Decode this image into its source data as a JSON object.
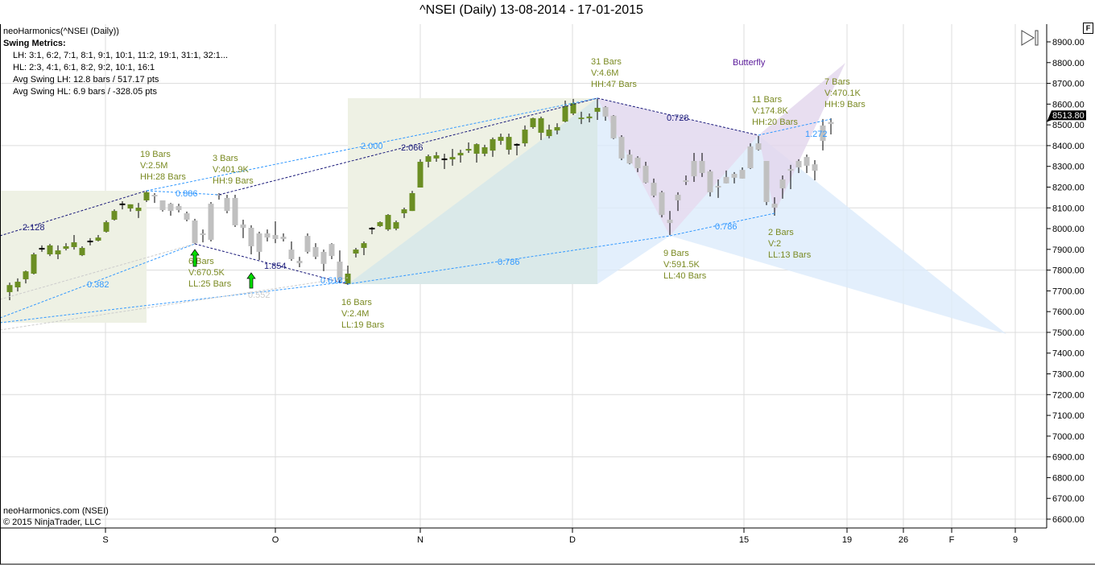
{
  "title": "^NSEI (Daily)  13-08-2014 - 17-01-2015",
  "indicator": {
    "name": "neoHarmonics(^NSEI (Daily))",
    "metrics_title": "Swing Metrics:",
    "lh": "LH: 3:1, 6:2, 7:1, 8:1, 9:1, 10:1, 11:2, 19:1, 31:1, 32:1...",
    "hl": "HL: 2:3, 4:1, 6:1, 8:2, 9:2, 10:1, 16:1",
    "avg_lh": "Avg Swing LH: 12.8 bars / 517.17 pts",
    "avg_hl": "Avg Swing HL: 6.9 bars / -328.05 pts"
  },
  "footer": {
    "source": "neoHarmonics.com (NSEI)",
    "copyright": "© 2015 NinjaTrader, LLC"
  },
  "flag_label": "F",
  "pattern_label": "Butterfly",
  "last_price": "8513.80",
  "colors": {
    "up": "#6b8e23",
    "neutral": "#c0c0c0",
    "zone": "#eef1e4",
    "blue_zone": "#dcebfb",
    "purple_zone": "#e6dcef",
    "dark_line": "#1a1a7a",
    "light_line": "#3399ff",
    "arrow": "#00dd00"
  },
  "swing_labels": [
    {
      "l1": "19 Bars",
      "l2": "V:2.5M",
      "l3": "HH:28 Bars"
    },
    {
      "l1": "3 Bars",
      "l2": "V:401.9K",
      "l3": "HH:9 Bars"
    },
    {
      "l1": "6 Bars",
      "l2": "V:670.5K",
      "l3": "LL:25 Bars"
    },
    {
      "l1": "16 Bars",
      "l2": "V:2.4M",
      "l3": "LL:19 Bars"
    },
    {
      "l1": "31 Bars",
      "l2": "V:4.6M",
      "l3": "HH:47 Bars"
    },
    {
      "l1": "9 Bars",
      "l2": "V:591.5K",
      "l3": "LL:40 Bars"
    },
    {
      "l1": "11 Bars",
      "l2": "V:174.8K",
      "l3": "HH:20 Bars"
    },
    {
      "l1": "2 Bars",
      "l2": "V:2",
      "l3": "LL:13 Bars"
    },
    {
      "l1": "7 Bars",
      "l2": "V:470.1K",
      "l3": "HH:9 Bars"
    }
  ],
  "ratios": [
    "2.128",
    "0.886",
    "0.382",
    "1.854",
    "0.552",
    "0.618",
    "2.000",
    "2.066",
    "0.786",
    "0.728",
    "0.786",
    "1.272"
  ],
  "chart_data": {
    "type": "candlestick",
    "title": "^NSEI (Daily)  13-08-2014 - 17-01-2015",
    "ylim": [
      6550,
      8950
    ],
    "y_ticks": [
      "8900.00",
      "8800.00",
      "8700.00",
      "8600.00",
      "8500.00",
      "8400.00",
      "8300.00",
      "8200.00",
      "8100.00",
      "8000.00",
      "7900.00",
      "7800.00",
      "7700.00",
      "7600.00",
      "7500.00",
      "7400.00",
      "7300.00",
      "7200.00",
      "7100.00",
      "7000.00",
      "6900.00",
      "6800.00",
      "6700.00",
      "6600.00"
    ],
    "x_ticks": [
      "S",
      "O",
      "N",
      "D",
      "15",
      "19",
      "26",
      "F",
      "9"
    ],
    "grid": true,
    "candle_fields": [
      "open",
      "high",
      "low",
      "close",
      "color"
    ],
    "candles": [
      [
        7694,
        7740,
        7655,
        7728,
        "g"
      ],
      [
        7717,
        7760,
        7697,
        7744,
        "g"
      ],
      [
        7756,
        7798,
        7736,
        7794,
        "g"
      ],
      [
        7783,
        7884,
        7779,
        7876,
        "g"
      ],
      [
        7903,
        7919,
        7888,
        7903,
        "g"
      ],
      [
        7876,
        7926,
        7868,
        7919,
        "g"
      ],
      [
        7876,
        7919,
        7853,
        7895,
        "g"
      ],
      [
        7903,
        7930,
        7895,
        7915,
        "g"
      ],
      [
        7911,
        7969,
        7899,
        7934,
        "g"
      ],
      [
        7872,
        7915,
        7868,
        7907,
        "g"
      ],
      [
        7938,
        7954,
        7919,
        7938,
        "g"
      ],
      [
        7942,
        7969,
        7938,
        7957,
        "g"
      ],
      [
        7985,
        8039,
        7981,
        8031,
        "g"
      ],
      [
        8043,
        8093,
        8039,
        8085,
        "g"
      ],
      [
        8117,
        8132,
        8093,
        8117,
        "g"
      ],
      [
        8097,
        8117,
        8082,
        8117,
        "g"
      ],
      [
        8085,
        8124,
        8051,
        8101,
        "g"
      ],
      [
        8136,
        8182,
        8128,
        8175,
        "g"
      ],
      [
        8159,
        8171,
        8124,
        8159,
        "s"
      ],
      [
        8136,
        8136,
        8082,
        8089,
        "s"
      ],
      [
        8120,
        8124,
        8062,
        8085,
        "s"
      ],
      [
        8109,
        8120,
        8078,
        8089,
        "s"
      ],
      [
        8074,
        8082,
        8035,
        8043,
        "s"
      ],
      [
        8039,
        8047,
        7926,
        7930,
        "s"
      ],
      [
        7973,
        7996,
        7934,
        7973,
        "s"
      ],
      [
        7946,
        8128,
        7938,
        8120,
        "s"
      ],
      [
        8163,
        8171,
        8140,
        8163,
        "s"
      ],
      [
        8148,
        8163,
        8074,
        8085,
        "s"
      ],
      [
        8148,
        8163,
        8008,
        8016,
        "s"
      ],
      [
        8020,
        8043,
        7954,
        8004,
        "s"
      ],
      [
        8004,
        8016,
        7876,
        7915,
        "s"
      ],
      [
        7977,
        7985,
        7849,
        7888,
        "s"
      ],
      [
        7977,
        7996,
        7938,
        7957,
        "s"
      ],
      [
        7969,
        8035,
        7930,
        7950,
        "s"
      ],
      [
        7961,
        7977,
        7938,
        7950,
        "s"
      ],
      [
        7899,
        7938,
        7845,
        7853,
        "s"
      ],
      [
        7845,
        7864,
        7814,
        7833,
        "s"
      ],
      [
        7965,
        7977,
        7880,
        7888,
        "s"
      ],
      [
        7911,
        7930,
        7853,
        7864,
        "s"
      ],
      [
        7888,
        7899,
        7795,
        7830,
        "s"
      ],
      [
        7926,
        7930,
        7853,
        7868,
        "s"
      ],
      [
        7841,
        7895,
        7736,
        7752,
        "s"
      ],
      [
        7733,
        7822,
        7729,
        7783,
        "g"
      ],
      [
        7880,
        7907,
        7861,
        7899,
        "g"
      ],
      [
        7907,
        7938,
        7872,
        7930,
        "g"
      ],
      [
        8000,
        8008,
        7973,
        8000,
        "g"
      ],
      [
        8012,
        8035,
        8008,
        8031,
        "g"
      ],
      [
        7996,
        8070,
        7989,
        8066,
        "g"
      ],
      [
        8000,
        8039,
        7992,
        8031,
        "g"
      ],
      [
        8074,
        8101,
        8051,
        8093,
        "g"
      ],
      [
        8085,
        8182,
        8085,
        8171,
        "g"
      ],
      [
        8198,
        8334,
        8198,
        8322,
        "g"
      ],
      [
        8322,
        8357,
        8295,
        8349,
        "g"
      ],
      [
        8338,
        8369,
        8322,
        8353,
        "g"
      ],
      [
        8334,
        8361,
        8287,
        8334,
        "g"
      ],
      [
        8334,
        8384,
        8303,
        8345,
        "g"
      ],
      [
        8353,
        8380,
        8318,
        8365,
        "g"
      ],
      [
        8376,
        8415,
        8365,
        8384,
        "g"
      ],
      [
        8361,
        8411,
        8318,
        8407,
        "g"
      ],
      [
        8361,
        8404,
        8349,
        8392,
        "g"
      ],
      [
        8376,
        8439,
        8346,
        8431,
        "g"
      ],
      [
        8423,
        8458,
        8404,
        8442,
        "g"
      ],
      [
        8380,
        8458,
        8357,
        8442,
        "g"
      ],
      [
        8404,
        8411,
        8353,
        8404,
        "g"
      ],
      [
        8411,
        8497,
        8396,
        8477,
        "g"
      ],
      [
        8489,
        8535,
        8481,
        8532,
        "g"
      ],
      [
        8462,
        8540,
        8427,
        8532,
        "g"
      ],
      [
        8446,
        8501,
        8435,
        8477,
        "g"
      ],
      [
        8473,
        8508,
        8454,
        8489,
        "g"
      ],
      [
        8516,
        8617,
        8512,
        8590,
        "g"
      ],
      [
        8555,
        8625,
        8547,
        8605,
        "g"
      ],
      [
        8528,
        8563,
        8504,
        8535,
        "g"
      ],
      [
        8532,
        8555,
        8512,
        8540,
        "g"
      ],
      [
        8563,
        8625,
        8524,
        8582,
        "g"
      ],
      [
        8586,
        8590,
        8520,
        8540,
        "s"
      ],
      [
        8544,
        8547,
        8431,
        8435,
        "s"
      ],
      [
        8442,
        8450,
        8330,
        8338,
        "s"
      ],
      [
        8357,
        8380,
        8310,
        8314,
        "s"
      ],
      [
        8342,
        8349,
        8272,
        8291,
        "s"
      ],
      [
        8303,
        8322,
        8218,
        8221,
        "s"
      ],
      [
        8221,
        8241,
        8151,
        8159,
        "s"
      ],
      [
        8175,
        8182,
        8054,
        8066,
        "s"
      ],
      [
        8043,
        8085,
        7969,
        8027,
        "s"
      ],
      [
        8136,
        8175,
        8085,
        8163,
        "s"
      ],
      [
        8229,
        8256,
        8210,
        8229,
        "s"
      ],
      [
        8252,
        8365,
        8225,
        8326,
        "s"
      ],
      [
        8268,
        8365,
        8249,
        8326,
        "s"
      ],
      [
        8276,
        8283,
        8155,
        8175,
        "s"
      ],
      [
        8202,
        8237,
        8148,
        8202,
        "s"
      ],
      [
        8218,
        8280,
        8218,
        8249,
        "s"
      ],
      [
        8245,
        8272,
        8218,
        8264,
        "s"
      ],
      [
        8241,
        8295,
        8241,
        8283,
        "s"
      ],
      [
        8291,
        8411,
        8287,
        8396,
        "s"
      ],
      [
        8380,
        8446,
        8376,
        8411,
        "s"
      ],
      [
        8326,
        8326,
        8113,
        8128,
        "s"
      ],
      [
        8120,
        8151,
        8062,
        8101,
        "s"
      ],
      [
        8194,
        8256,
        8144,
        8237,
        "s"
      ],
      [
        8283,
        8307,
        8190,
        8283,
        "s"
      ],
      [
        8295,
        8334,
        8268,
        8326,
        "s"
      ],
      [
        8303,
        8357,
        8268,
        8345,
        "s"
      ],
      [
        8310,
        8330,
        8233,
        8279,
        "s"
      ],
      [
        8423,
        8528,
        8377,
        8497,
        "s"
      ],
      [
        8504,
        8532,
        8454,
        8513.8,
        "s"
      ]
    ]
  }
}
